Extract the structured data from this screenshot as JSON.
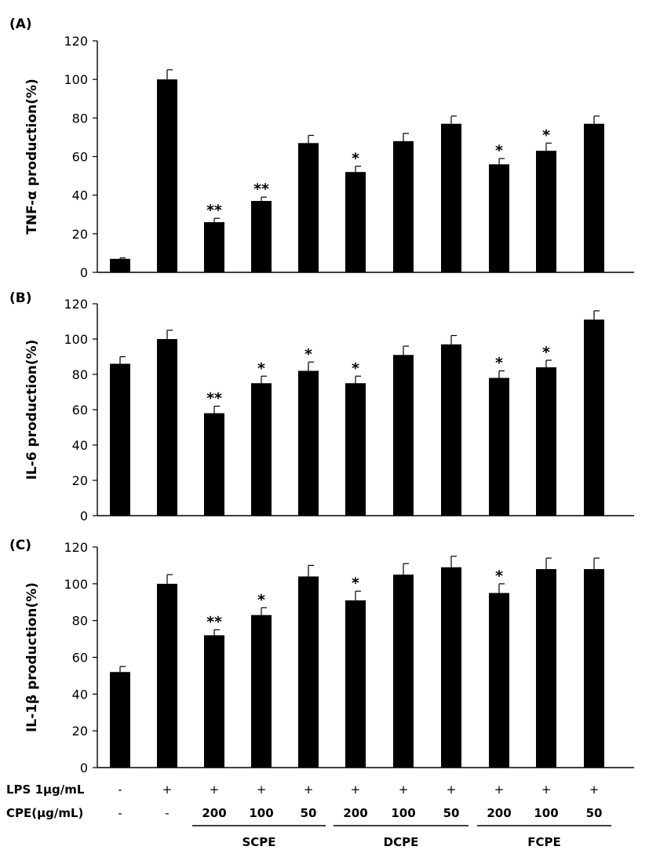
{
  "chart_data": [
    {
      "type": "bar",
      "panel_label": "(A)",
      "ylabel": "TNF-α production(%)",
      "ylim": [
        0,
        120
      ],
      "yticks": [
        0,
        20,
        40,
        60,
        80,
        100,
        120
      ],
      "values": [
        7,
        100,
        26,
        37,
        67,
        52,
        68,
        77,
        56,
        63,
        77
      ],
      "errors": [
        0.5,
        5,
        2,
        2,
        4,
        3,
        4,
        4,
        3,
        4,
        4
      ],
      "significance": [
        "",
        "",
        "**",
        "**",
        "",
        "*",
        "",
        "",
        "*",
        "*",
        ""
      ]
    },
    {
      "type": "bar",
      "panel_label": "(B)",
      "ylabel": "IL-6 production(%)",
      "ylim": [
        0,
        120
      ],
      "yticks": [
        0,
        20,
        40,
        60,
        80,
        100,
        120
      ],
      "values": [
        86,
        100,
        58,
        75,
        82,
        75,
        91,
        97,
        78,
        84,
        111
      ],
      "errors": [
        4,
        5,
        4,
        4,
        5,
        4,
        5,
        5,
        4,
        4,
        5
      ],
      "significance": [
        "",
        "",
        "**",
        "*",
        "*",
        "*",
        "",
        "",
        "*",
        "*",
        ""
      ]
    },
    {
      "type": "bar",
      "panel_label": "(C)",
      "ylabel": "IL-1β production(%)",
      "ylim": [
        0,
        120
      ],
      "yticks": [
        0,
        20,
        40,
        60,
        80,
        100,
        120
      ],
      "values": [
        52,
        100,
        72,
        83,
        104,
        91,
        105,
        109,
        95,
        108,
        108
      ],
      "errors": [
        3,
        5,
        3,
        4,
        6,
        5,
        6,
        6,
        5,
        6,
        6
      ],
      "significance": [
        "",
        "",
        "**",
        "*",
        "",
        "*",
        "",
        "",
        "*",
        "",
        ""
      ]
    }
  ],
  "conditions": {
    "lps_label": "LPS 1μg/mL",
    "lps_values": [
      "-",
      "+",
      "+",
      "+",
      "+",
      "+",
      "+",
      "+",
      "+",
      "+",
      "+"
    ],
    "cpe_label": "CPE(μg/mL)",
    "cpe_values": [
      "-",
      "-",
      "200",
      "100",
      "50",
      "200",
      "100",
      "50",
      "200",
      "100",
      "50"
    ],
    "groups": [
      {
        "label": "SCPE",
        "first": 2,
        "last": 4
      },
      {
        "label": "DCPE",
        "first": 5,
        "last": 7
      },
      {
        "label": "FCPE",
        "first": 8,
        "last": 10
      }
    ]
  },
  "colors": {
    "bar": "#000000",
    "axis": "#000000",
    "background": "#ffffff"
  }
}
